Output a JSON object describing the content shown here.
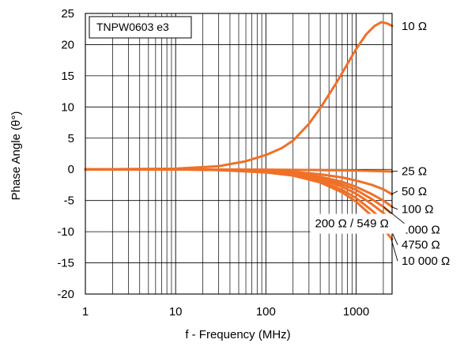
{
  "chart_data": {
    "type": "line",
    "title": "",
    "xlabel": "f - Frequency (MHz)",
    "ylabel": "Phase Angle (θ°)",
    "x_scale": "log",
    "xlim": [
      1,
      2500
    ],
    "ylim": [
      -20,
      25
    ],
    "x_ticks": [
      1,
      10,
      100,
      1000
    ],
    "x_tick_labels": [
      "1",
      "10",
      "100",
      "1000"
    ],
    "y_ticks": [
      -20,
      -15,
      -10,
      -5,
      0,
      5,
      10,
      15,
      20,
      25
    ],
    "y_tick_labels": [
      "-20",
      "-15",
      "-10",
      "-5",
      "0",
      "5",
      "10",
      "15",
      "20",
      "25"
    ],
    "grid": true,
    "inset_label": "TNPW0603 e3",
    "series_color": "#f07028",
    "series": [
      {
        "name": "10 Ω",
        "x": [
          1,
          10,
          30,
          60,
          100,
          150,
          200,
          300,
          400,
          600,
          800,
          1000,
          1300,
          1600,
          1900,
          2200,
          2500
        ],
        "y": [
          0,
          0.1,
          0.5,
          1.3,
          2.3,
          3.4,
          4.6,
          7.3,
          9.8,
          13.8,
          16.9,
          19.3,
          21.7,
          23.0,
          23.6,
          23.4,
          23.0
        ]
      },
      {
        "name": "25 Ω",
        "x": [
          1,
          10,
          100,
          300,
          600,
          1000,
          1500,
          2000,
          2500
        ],
        "y": [
          0,
          0,
          -0.05,
          -0.1,
          -0.15,
          -0.2,
          -0.25,
          -0.3,
          -0.35
        ]
      },
      {
        "name": "50 Ω",
        "x": [
          1,
          10,
          30,
          100,
          200,
          400,
          700,
          1000,
          1500,
          2000,
          2500
        ],
        "y": [
          0,
          0,
          -0.05,
          -0.2,
          -0.4,
          -0.8,
          -1.3,
          -1.8,
          -2.5,
          -3.2,
          -4.0
        ]
      },
      {
        "name": "100 Ω",
        "x": [
          1,
          10,
          30,
          100,
          200,
          400,
          700,
          1000,
          1500,
          2000,
          2500
        ],
        "y": [
          0,
          0,
          -0.08,
          -0.3,
          -0.6,
          -1.2,
          -2.0,
          -2.8,
          -4.0,
          -5.0,
          -6.0
        ]
      },
      {
        "name": "200 Ω / 549 Ω",
        "x": [
          1,
          10,
          30,
          100,
          200,
          400,
          700,
          1000,
          1500,
          2000,
          2500
        ],
        "y": [
          0,
          0,
          -0.1,
          -0.35,
          -0.7,
          -1.4,
          -2.4,
          -3.3,
          -4.8,
          -6.0,
          -7.2
        ]
      },
      {
        "name": "1000 Ω",
        "x": [
          1,
          10,
          30,
          100,
          200,
          400,
          700,
          1000,
          1500,
          2000,
          2500
        ],
        "y": [
          0,
          0,
          -0.1,
          -0.4,
          -0.8,
          -1.6,
          -2.8,
          -3.9,
          -5.6,
          -7.0,
          -8.3
        ]
      },
      {
        "name": "4750 Ω",
        "x": [
          1,
          10,
          30,
          100,
          200,
          400,
          700,
          1000,
          1500,
          2000,
          2500
        ],
        "y": [
          0,
          0,
          -0.12,
          -0.45,
          -0.9,
          -1.9,
          -3.3,
          -4.6,
          -6.6,
          -8.3,
          -9.8
        ]
      },
      {
        "name": "10 000 Ω",
        "x": [
          1,
          10,
          30,
          100,
          200,
          400,
          700,
          1000,
          1500,
          2000,
          2500
        ],
        "y": [
          0,
          0,
          -0.12,
          -0.5,
          -1.0,
          -2.1,
          -3.7,
          -5.2,
          -7.5,
          -9.5,
          -11.2
        ]
      }
    ],
    "labels": [
      {
        "text": "10 Ω",
        "y": 23.0
      },
      {
        "text": "25 Ω",
        "y": -0.3
      },
      {
        "text": "50 Ω",
        "y": -3.5
      },
      {
        "text": "100 Ω",
        "y": -6.4
      },
      {
        "text": "1000 Ω",
        "y": -9.7
      },
      {
        "text": "4750 Ω",
        "y": -12.1
      },
      {
        "text": "10 000 Ω",
        "y": -14.7
      }
    ],
    "annotation": {
      "text": "200 Ω / 549 Ω",
      "target_x": 2000,
      "target_y": -6.0,
      "text_x": 350,
      "text_y": -9.3
    }
  }
}
